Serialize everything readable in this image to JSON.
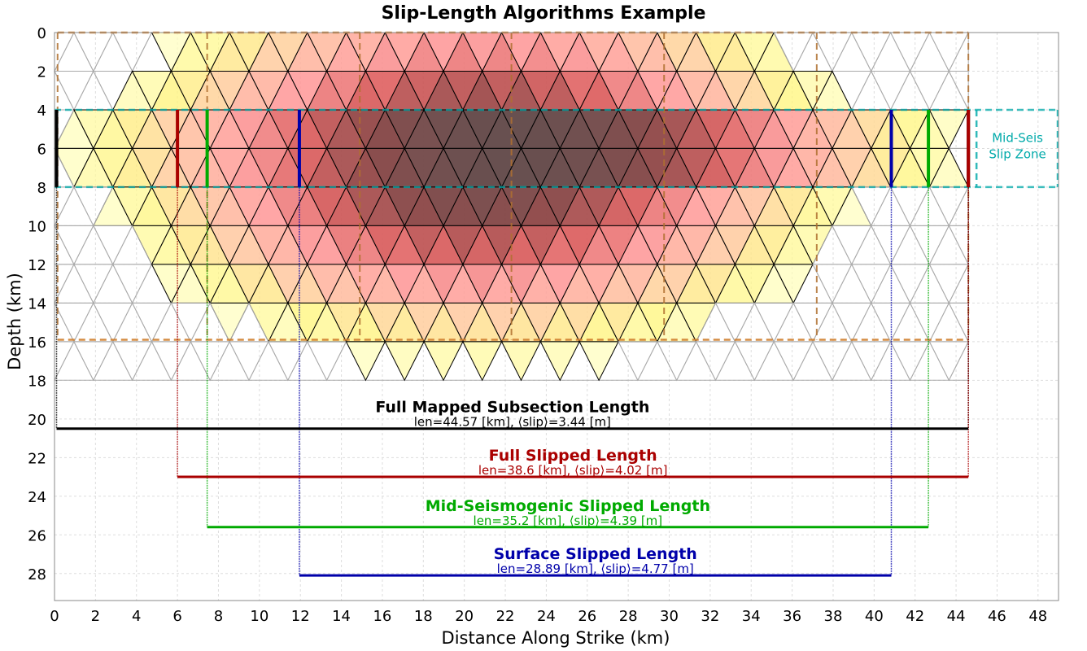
{
  "chart_data": {
    "type": "other",
    "title": "Slip-Length Algorithms Example",
    "xlabel": "Distance Along Strike (km)",
    "ylabel": "Depth (km)",
    "xlim": [
      0,
      49
    ],
    "ylim": [
      0,
      29.4
    ],
    "y_inverted": true,
    "grid": true,
    "x_ticks": [
      0,
      2,
      4,
      6,
      8,
      10,
      12,
      14,
      16,
      18,
      20,
      22,
      24,
      26,
      28,
      30,
      32,
      34,
      36,
      38,
      40,
      42,
      44,
      46,
      48
    ],
    "y_ticks": [
      0,
      2,
      4,
      6,
      8,
      10,
      12,
      14,
      16,
      18,
      20,
      22,
      24,
      26,
      28
    ],
    "mesh": {
      "x_range": [
        0,
        44.6
      ],
      "depth_range": [
        0,
        18
      ],
      "columns": 24,
      "rows": 9
    },
    "subsection_boundaries": [
      0.15,
      7.45,
      14.9,
      22.3,
      29.75,
      37.2,
      44.6
    ],
    "subsection_box_depth": [
      0,
      15.9
    ],
    "mid_seismogenic_zone": {
      "depth_range": [
        4,
        8
      ],
      "label_lines": [
        "Mid-Seis",
        "Slip Zone"
      ],
      "color": "#00AAAA"
    },
    "lengths": [
      {
        "name": "Full Mapped Subsection Length",
        "stats": "len=44.57 [km], ⟨slip⟩=3.44 [m]",
        "x_start": 0.1,
        "x_end": 44.6,
        "depth": 20.5,
        "color": "#000000"
      },
      {
        "name": "Full Slipped Length",
        "stats": "len=38.6 [km], ⟨slip⟩=4.02 [m]",
        "x_start": 6.0,
        "x_end": 44.6,
        "depth": 23.0,
        "color": "#AA0000"
      },
      {
        "name": "Mid-Seismogenic Slipped Length",
        "stats": "len=35.2 [km], ⟨slip⟩=4.39 [m]",
        "x_start": 7.45,
        "x_end": 42.65,
        "depth": 25.6,
        "color": "#00AA00"
      },
      {
        "name": "Surface Slipped Length",
        "stats": "len=28.89 [km], ⟨slip⟩=4.77 [m]",
        "x_start": 11.95,
        "x_end": 40.84,
        "depth": 28.1,
        "color": "#0000AA"
      }
    ]
  }
}
